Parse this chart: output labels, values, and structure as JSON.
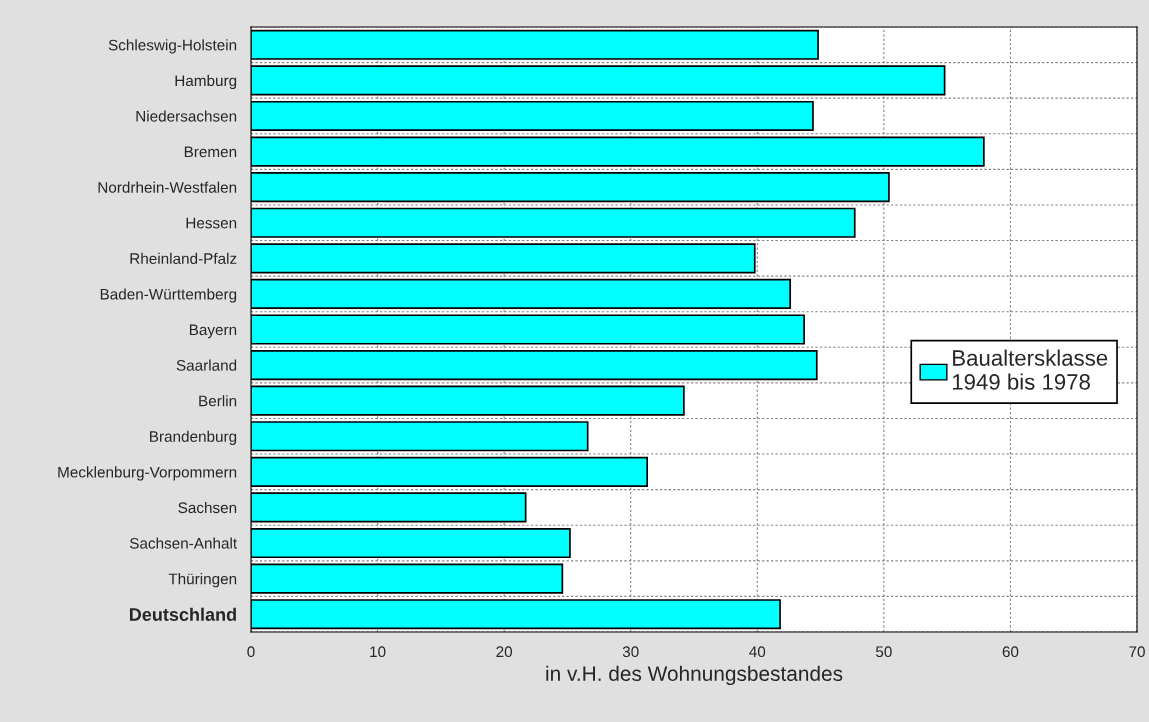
{
  "chart_data": {
    "type": "bar",
    "orientation": "horizontal",
    "xlabel": "in v.H. des Wohnungsbestandes",
    "categories": [
      "Schleswig-Holstein",
      "Hamburg",
      "Niedersachsen",
      "Bremen",
      "Nordrhein-Westfalen",
      "Hessen",
      "Rheinland-Pfalz",
      "Baden-Württemberg",
      "Bayern",
      "Saarland",
      "Berlin",
      "Brandenburg",
      "Mecklenburg-Vorpommern",
      "Sachsen",
      "Sachsen-Anhalt",
      "Thüringen",
      "Deutschland"
    ],
    "series": [
      {
        "name": "Baualtersklasse\n1949 bis 1978",
        "color": "#00ffff",
        "values": [
          44.8,
          54.8,
          44.4,
          57.9,
          50.4,
          47.7,
          39.8,
          42.6,
          43.7,
          44.7,
          34.2,
          26.6,
          31.3,
          21.7,
          25.2,
          24.6,
          41.8
        ]
      }
    ],
    "xlim": [
      0,
      70
    ],
    "xticks": [
      0,
      10,
      20,
      30,
      40,
      50,
      60,
      70
    ],
    "grid": true,
    "legend": "right"
  }
}
